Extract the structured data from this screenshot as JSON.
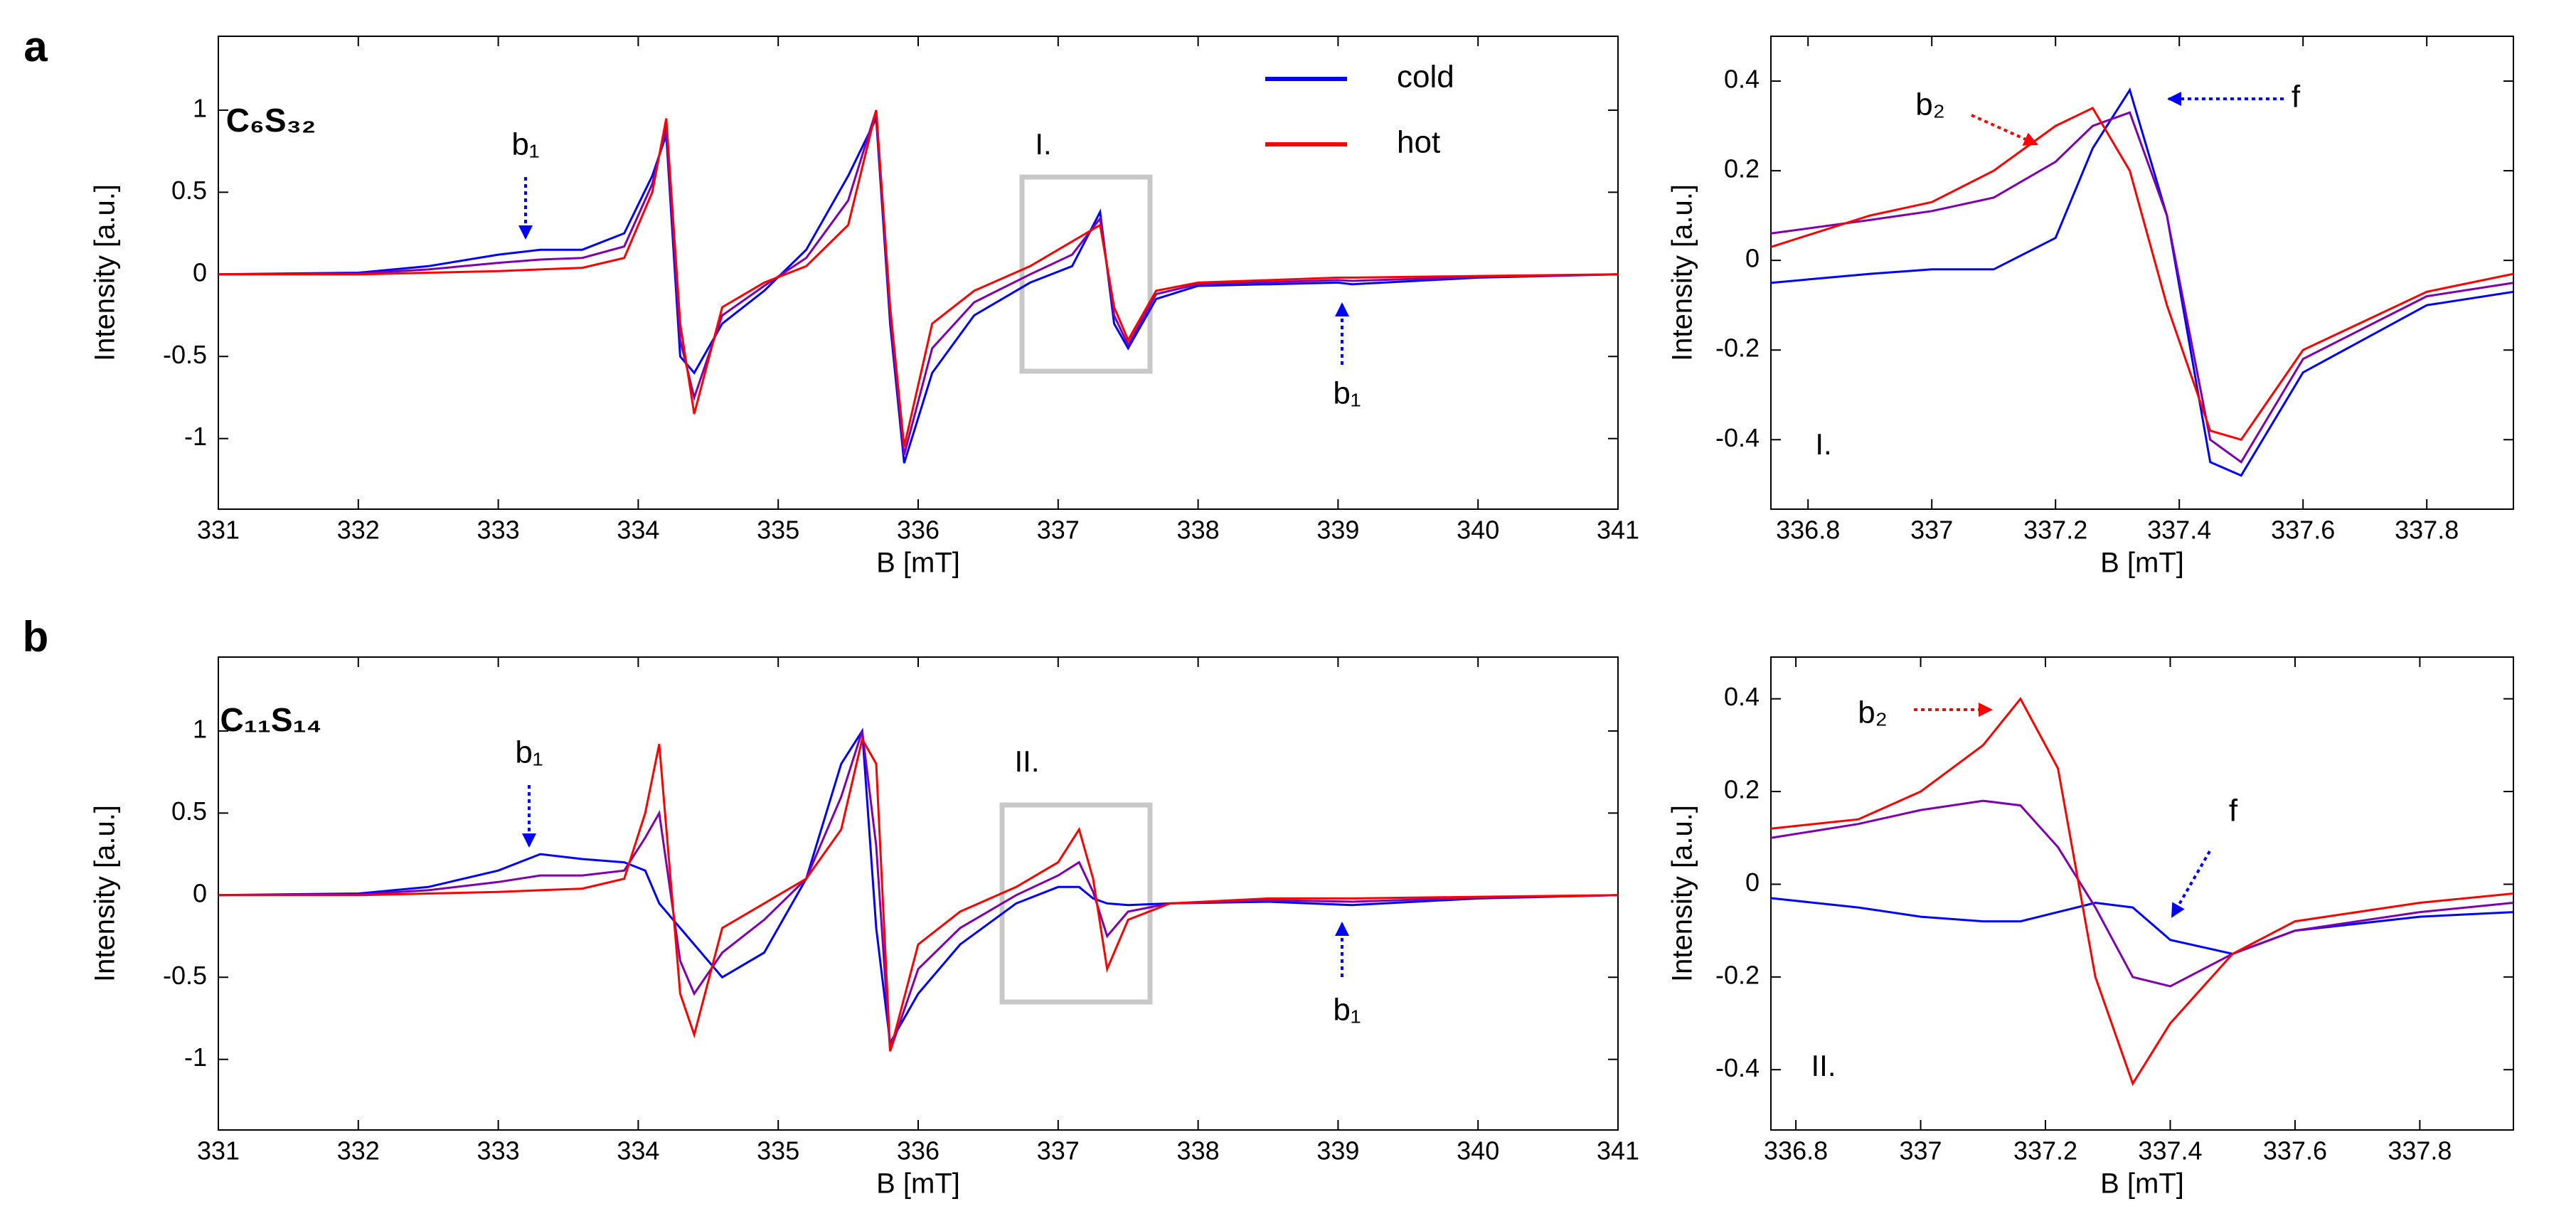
{
  "chart_data": [
    {
      "type": "line",
      "xlabel": "B [mT]",
      "ylabel": "Intensity [a.u.]",
      "xlim": [
        331,
        341
      ],
      "xticks": [
        331,
        332,
        333,
        334,
        335,
        336,
        337,
        338,
        339,
        340,
        341
      ],
      "ylim": [
        -1.43,
        1.45
      ],
      "yticks": [
        -1,
        -0.5,
        0,
        0.5,
        1
      ],
      "annotations": [
        "a",
        "C₆S₃₂",
        "b₁",
        "b₁",
        "I."
      ],
      "x": [
        331,
        332,
        332.5,
        333,
        333.3,
        333.6,
        333.9,
        334.1,
        334.2,
        334.3,
        334.4,
        334.6,
        334.9,
        335.2,
        335.5,
        335.7,
        335.8,
        335.9,
        336.1,
        336.4,
        336.8,
        337.1,
        337.3,
        337.4,
        337.5,
        337.7,
        338,
        339,
        339.1,
        340,
        341
      ],
      "series": [
        {
          "name": "cold",
          "color": "#0000ff",
          "values": [
            0,
            0.01,
            0.05,
            0.12,
            0.15,
            0.15,
            0.25,
            0.6,
            0.85,
            -0.5,
            -0.6,
            -0.3,
            -0.1,
            0.15,
            0.6,
            0.95,
            -0.3,
            -1.15,
            -0.6,
            -0.25,
            -0.05,
            0.05,
            0.38,
            -0.3,
            -0.45,
            -0.15,
            -0.07,
            -0.05,
            -0.06,
            -0.02,
            0
          ]
        },
        {
          "color": "#8000b0",
          "values": [
            0,
            0.005,
            0.03,
            0.07,
            0.09,
            0.1,
            0.17,
            0.55,
            0.9,
            -0.4,
            -0.75,
            -0.25,
            -0.07,
            0.1,
            0.45,
            1.0,
            -0.25,
            -1.1,
            -0.45,
            -0.17,
            0,
            0.12,
            0.34,
            -0.25,
            -0.43,
            -0.12,
            -0.06,
            -0.035,
            -0.04,
            -0.015,
            0
          ]
        },
        {
          "name": "hot",
          "color": "#ff0000",
          "values": [
            0,
            0,
            0.01,
            0.02,
            0.03,
            0.04,
            0.1,
            0.5,
            0.95,
            -0.3,
            -0.85,
            -0.2,
            -0.05,
            0.05,
            0.3,
            1.0,
            -0.2,
            -1.05,
            -0.3,
            -0.1,
            0.05,
            0.2,
            0.3,
            -0.2,
            -0.4,
            -0.1,
            -0.05,
            -0.02,
            -0.02,
            -0.01,
            0
          ]
        }
      ]
    },
    {
      "type": "line",
      "xlabel": "B [mT]",
      "ylabel": "Intensity [a.u.]",
      "xlim": [
        336.74,
        337.94
      ],
      "xticks": [
        336.8,
        337,
        337.2,
        337.4,
        337.6,
        337.8
      ],
      "ylim": [
        -0.555,
        0.5
      ],
      "yticks": [
        -0.4,
        -0.2,
        0,
        0.2,
        0.4
      ],
      "annotations": [
        "b₂",
        "f",
        "I."
      ],
      "x": [
        336.74,
        336.9,
        337.0,
        337.1,
        337.2,
        337.26,
        337.32,
        337.38,
        337.45,
        337.5,
        337.6,
        337.8,
        337.94
      ],
      "series": [
        {
          "color": "#0000ff",
          "values": [
            -0.05,
            -0.03,
            -0.02,
            -0.02,
            0.05,
            0.25,
            0.38,
            0.1,
            -0.45,
            -0.48,
            -0.25,
            -0.1,
            -0.07
          ]
        },
        {
          "color": "#8000b0",
          "values": [
            0.06,
            0.09,
            0.11,
            0.14,
            0.22,
            0.3,
            0.33,
            0.1,
            -0.4,
            -0.45,
            -0.22,
            -0.08,
            -0.05
          ]
        },
        {
          "color": "#ff0000",
          "values": [
            0.03,
            0.1,
            0.13,
            0.2,
            0.3,
            0.34,
            0.2,
            -0.1,
            -0.38,
            -0.4,
            -0.2,
            -0.07,
            -0.03
          ]
        }
      ]
    },
    {
      "type": "line",
      "xlabel": "B [mT]",
      "ylabel": "Intensity [a.u.]",
      "xlim": [
        331,
        341
      ],
      "xticks": [
        331,
        332,
        333,
        334,
        335,
        336,
        337,
        338,
        339,
        340,
        341
      ],
      "ylim": [
        -1.43,
        1.45
      ],
      "yticks": [
        -1,
        -0.5,
        0,
        0.5,
        1
      ],
      "annotations": [
        "b",
        "C₁₁S₁₄",
        "b₁",
        "b₁",
        "II."
      ],
      "x": [
        331,
        332,
        332.5,
        333,
        333.3,
        333.6,
        333.9,
        334.05,
        334.15,
        334.3,
        334.4,
        334.6,
        334.9,
        335.2,
        335.45,
        335.6,
        335.7,
        335.8,
        336,
        336.3,
        336.7,
        337,
        337.15,
        337.25,
        337.35,
        337.5,
        337.8,
        338.5,
        339.1,
        340,
        341
      ],
      "series": [
        {
          "color": "#0000ff",
          "values": [
            0,
            0.01,
            0.05,
            0.15,
            0.25,
            0.22,
            0.2,
            0.15,
            -0.05,
            -0.2,
            -0.3,
            -0.5,
            -0.35,
            0.1,
            0.8,
            1.0,
            -0.2,
            -0.9,
            -0.6,
            -0.3,
            -0.05,
            0.05,
            0.05,
            -0.02,
            -0.05,
            -0.06,
            -0.05,
            -0.04,
            -0.06,
            -0.02,
            0
          ]
        },
        {
          "color": "#8000b0",
          "values": [
            0,
            0.005,
            0.03,
            0.08,
            0.12,
            0.12,
            0.15,
            0.35,
            0.5,
            -0.4,
            -0.6,
            -0.35,
            -0.15,
            0.1,
            0.6,
            1.0,
            0.3,
            -0.95,
            -0.45,
            -0.2,
            0,
            0.12,
            0.2,
            0.02,
            -0.25,
            -0.1,
            -0.05,
            -0.03,
            -0.04,
            -0.015,
            0
          ]
        },
        {
          "color": "#ff0000",
          "values": [
            0,
            0,
            0.01,
            0.02,
            0.03,
            0.04,
            0.1,
            0.5,
            0.92,
            -0.6,
            -0.85,
            -0.2,
            -0.05,
            0.1,
            0.4,
            0.95,
            0.8,
            -0.95,
            -0.3,
            -0.1,
            0.05,
            0.2,
            0.4,
            0.1,
            -0.45,
            -0.15,
            -0.05,
            -0.02,
            -0.02,
            -0.01,
            0
          ]
        }
      ]
    },
    {
      "type": "line",
      "xlabel": "B [mT]",
      "ylabel": "Intensity [a.u.]",
      "xlim": [
        336.76,
        337.95
      ],
      "xticks": [
        336.8,
        337,
        337.2,
        337.4,
        337.6,
        337.8
      ],
      "ylim": [
        -0.53,
        0.49
      ],
      "yticks": [
        -0.4,
        -0.2,
        0,
        0.2,
        0.4
      ],
      "annotations": [
        "b₂",
        "f",
        "II."
      ],
      "x": [
        336.76,
        336.9,
        337.0,
        337.1,
        337.16,
        337.22,
        337.28,
        337.34,
        337.4,
        337.5,
        337.6,
        337.8,
        337.95
      ],
      "series": [
        {
          "color": "#0000ff",
          "values": [
            -0.03,
            -0.05,
            -0.07,
            -0.08,
            -0.08,
            -0.06,
            -0.04,
            -0.05,
            -0.12,
            -0.15,
            -0.1,
            -0.07,
            -0.06
          ]
        },
        {
          "color": "#8000b0",
          "values": [
            0.1,
            0.13,
            0.16,
            0.18,
            0.17,
            0.08,
            -0.05,
            -0.2,
            -0.22,
            -0.15,
            -0.1,
            -0.06,
            -0.04
          ]
        },
        {
          "color": "#ff0000",
          "values": [
            0.12,
            0.14,
            0.2,
            0.3,
            0.4,
            0.25,
            -0.2,
            -0.43,
            -0.3,
            -0.15,
            -0.08,
            -0.04,
            -0.02
          ]
        }
      ]
    }
  ]
}
